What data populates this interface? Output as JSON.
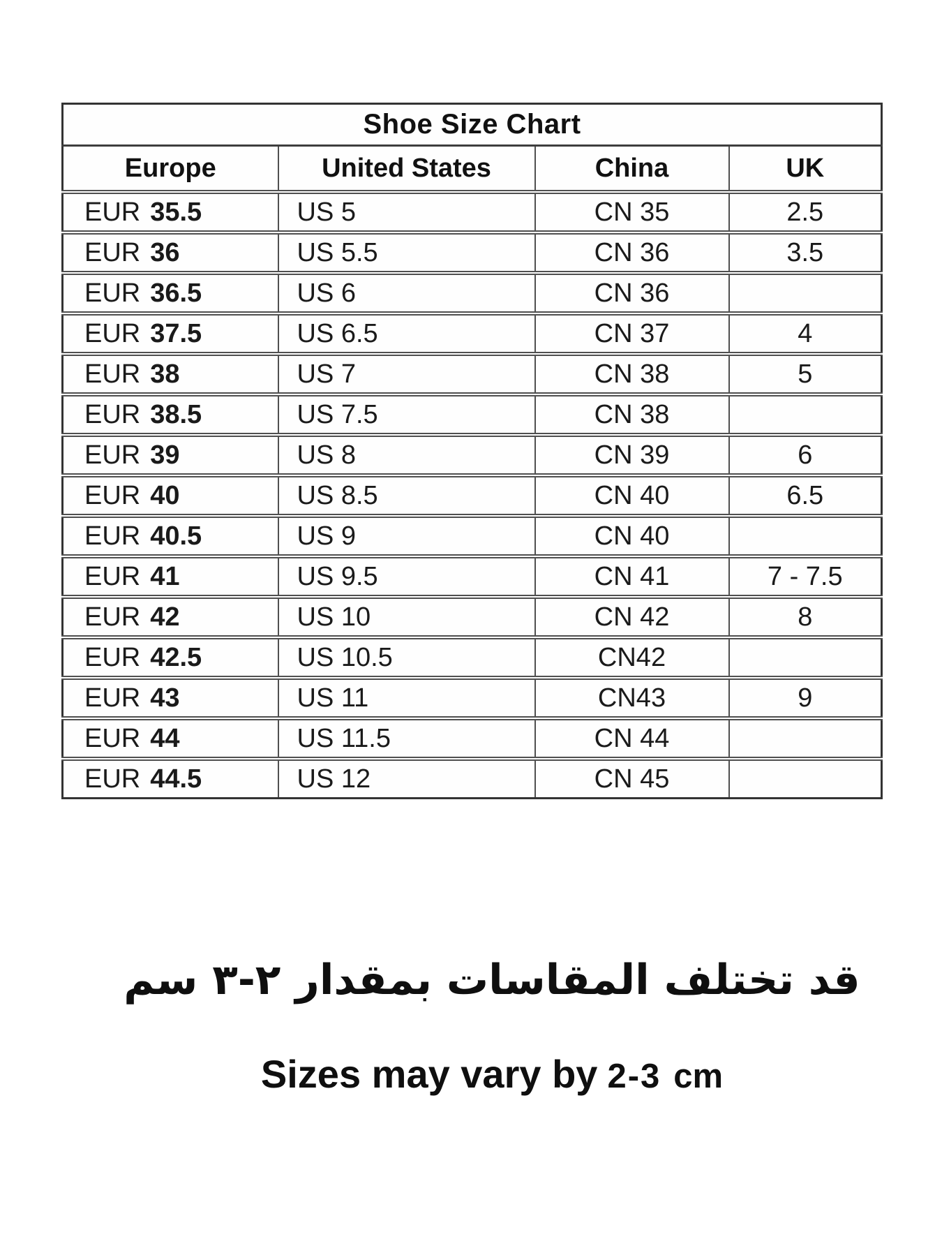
{
  "table": {
    "title": "Shoe Size Chart",
    "columns": [
      {
        "key": "europe",
        "label": "Europe"
      },
      {
        "key": "us",
        "label": "United States"
      },
      {
        "key": "china",
        "label": "China"
      },
      {
        "key": "uk",
        "label": "UK"
      }
    ],
    "rows": [
      {
        "europe_prefix": "EUR",
        "europe_size": "35.5",
        "us": "US 5",
        "china": "CN 35",
        "uk": "2.5"
      },
      {
        "europe_prefix": "EUR",
        "europe_size": "36",
        "us": "US 5.5",
        "china": "CN 36",
        "uk": "3.5"
      },
      {
        "europe_prefix": "EUR",
        "europe_size": "36.5",
        "us": "US 6",
        "china": "CN 36",
        "uk": ""
      },
      {
        "europe_prefix": "EUR",
        "europe_size": "37.5",
        "us": "US 6.5",
        "china": "CN 37",
        "uk": "4"
      },
      {
        "europe_prefix": "EUR",
        "europe_size": "38",
        "us": "US 7",
        "china": "CN 38",
        "uk": "5"
      },
      {
        "europe_prefix": "EUR",
        "europe_size": "38.5",
        "us": "US 7.5",
        "china": "CN 38",
        "uk": ""
      },
      {
        "europe_prefix": "EUR",
        "europe_size": "39",
        "us": "US 8",
        "china": "CN 39",
        "uk": "6"
      },
      {
        "europe_prefix": "EUR",
        "europe_size": "40",
        "us": "US 8.5",
        "china": "CN 40",
        "uk": "6.5"
      },
      {
        "europe_prefix": "EUR",
        "europe_size": "40.5",
        "us": "US 9",
        "china": "CN 40",
        "uk": ""
      },
      {
        "europe_prefix": "EUR",
        "europe_size": "41",
        "us": "US 9.5",
        "china": "CN 41",
        "uk": "7 - 7.5"
      },
      {
        "europe_prefix": "EUR",
        "europe_size": "42",
        "us": "US 10",
        "china": "CN 42",
        "uk": "8"
      },
      {
        "europe_prefix": "EUR",
        "europe_size": "42.5",
        "us": "US 10.5",
        "china": "CN42",
        "uk": ""
      },
      {
        "europe_prefix": "EUR",
        "europe_size": "43",
        "us": "US 11",
        "china": "CN43",
        "uk": "9"
      },
      {
        "europe_prefix": "EUR",
        "europe_size": "44",
        "us": "US 11.5",
        "china": "CN 44",
        "uk": ""
      },
      {
        "europe_prefix": "EUR",
        "europe_size": "44.5",
        "us": "US 12",
        "china": "CN 45",
        "uk": ""
      }
    ]
  },
  "notes": {
    "arabic": "قد تختلف المقاسات بمقدار ٢-٣ سم",
    "english_prefix": "Sizes may vary by",
    "english_range": "2-3",
    "english_unit": "cm"
  },
  "colors": {
    "background": "#ffffff",
    "text": "#161616",
    "border_outer": "#333333",
    "border_inner": "#4f4f4f"
  }
}
